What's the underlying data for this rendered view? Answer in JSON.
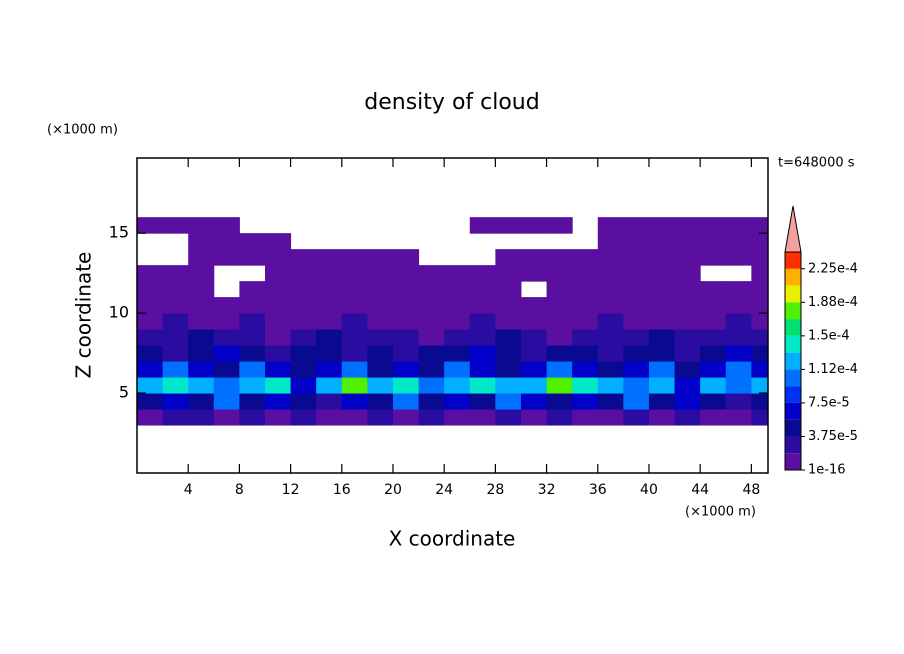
{
  "chart_data": {
    "type": "contour",
    "title": "density of cloud",
    "x_label": "X coordinate",
    "y_label": "Z coordinate",
    "x_unit": "(×1000 m)",
    "y_unit": "(×1000 m)",
    "time_label": "t=648000 s",
    "xlim": [
      0,
      49.3
    ],
    "ylim": [
      0,
      19.7
    ],
    "xticks": [
      4,
      8,
      12,
      16,
      20,
      24,
      28,
      32,
      36,
      40,
      44,
      48
    ],
    "yticks": [
      5,
      10,
      15
    ],
    "x": [
      1,
      3,
      5,
      7,
      9,
      11,
      13,
      15,
      17,
      19,
      21,
      23,
      25,
      27,
      29,
      31,
      33,
      35,
      37,
      39,
      41,
      43,
      45,
      47,
      49
    ],
    "y": [
      3.5,
      4.5,
      5.5,
      6.5,
      7.5,
      8.5,
      9.5,
      10.5,
      11.5,
      12.5,
      13.5,
      14.5,
      15.5,
      16.5
    ],
    "z": [
      [
        1e-06,
        2.5e-05,
        2.5e-05,
        1e-06,
        2.5e-05,
        1e-06,
        2.5e-05,
        1e-06,
        1e-06,
        2.5e-05,
        1e-06,
        2.5e-05,
        1e-06,
        1e-06,
        2.5e-05,
        1e-06,
        2.5e-05,
        1e-06,
        1e-06,
        2.5e-05,
        1e-06,
        2.5e-05,
        1e-06,
        1e-06,
        2.5e-05
      ],
      [
        4.5e-05,
        6.5e-05,
        4.5e-05,
        0.0001,
        4.5e-05,
        6.5e-05,
        4.5e-05,
        2.5e-05,
        6.5e-05,
        4.5e-05,
        0.0001,
        4.5e-05,
        6.5e-05,
        4.5e-05,
        0.0001,
        6.5e-05,
        4.5e-05,
        6.5e-05,
        4.5e-05,
        0.0001,
        4.5e-05,
        6.5e-05,
        4.5e-05,
        2.5e-05,
        4.5e-05
      ],
      [
        0.00012,
        0.00014,
        0.00012,
        0.0001,
        0.00012,
        0.00014,
        6.5e-05,
        0.00012,
        0.00017,
        0.00012,
        0.00014,
        0.0001,
        0.00012,
        0.00014,
        0.00012,
        0.00012,
        0.00017,
        0.00014,
        0.00012,
        0.0001,
        0.00012,
        6.5e-05,
        0.00012,
        0.0001,
        0.00012
      ],
      [
        6.5e-05,
        0.0001,
        6.5e-05,
        4.5e-05,
        0.0001,
        6.5e-05,
        4.5e-05,
        6.5e-05,
        0.0001,
        4.5e-05,
        6.5e-05,
        4.5e-05,
        0.0001,
        6.5e-05,
        4.5e-05,
        6.5e-05,
        0.0001,
        6.5e-05,
        4.5e-05,
        6.5e-05,
        0.0001,
        4.5e-05,
        6.5e-05,
        0.0001,
        6.5e-05
      ],
      [
        4.5e-05,
        2.5e-05,
        4.5e-05,
        6.5e-05,
        4.5e-05,
        2.5e-05,
        4.5e-05,
        4.5e-05,
        2.5e-05,
        4.5e-05,
        2.5e-05,
        4.5e-05,
        4.5e-05,
        6.5e-05,
        4.5e-05,
        2.5e-05,
        4.5e-05,
        4.5e-05,
        2.5e-05,
        4.5e-05,
        4.5e-05,
        2.5e-05,
        4.5e-05,
        6.5e-05,
        4.5e-05
      ],
      [
        2.5e-05,
        2.5e-05,
        4.5e-05,
        2.5e-05,
        2.5e-05,
        1e-06,
        2.5e-05,
        4.5e-05,
        2.5e-05,
        2.5e-05,
        2.5e-05,
        1e-06,
        2.5e-05,
        2.5e-05,
        4.5e-05,
        2.5e-05,
        1e-06,
        2.5e-05,
        2.5e-05,
        2.5e-05,
        4.5e-05,
        2.5e-05,
        2.5e-05,
        2.5e-05,
        2.5e-05
      ],
      [
        1e-06,
        2.5e-05,
        1e-06,
        1e-06,
        2.5e-05,
        1e-06,
        1e-06,
        1e-06,
        2.5e-05,
        1e-06,
        1e-06,
        1e-06,
        1e-06,
        2.5e-05,
        1e-06,
        1e-06,
        1e-06,
        1e-06,
        2.5e-05,
        1e-06,
        1e-06,
        1e-06,
        1e-06,
        2.5e-05,
        1e-06
      ],
      [
        1e-06,
        1e-06,
        1e-06,
        1e-06,
        1e-06,
        1e-06,
        1e-06,
        1e-06,
        1e-06,
        1e-06,
        1e-06,
        1e-06,
        1e-06,
        1e-06,
        1e-06,
        1e-06,
        1e-06,
        1e-06,
        1e-06,
        1e-06,
        1e-06,
        1e-06,
        1e-06,
        1e-06,
        1e-06
      ],
      [
        1e-06,
        1e-06,
        1e-06,
        null,
        1e-06,
        1e-06,
        1e-06,
        1e-06,
        1e-06,
        1e-06,
        1e-06,
        1e-06,
        1e-06,
        1e-06,
        1e-06,
        null,
        1e-06,
        1e-06,
        1e-06,
        1e-06,
        1e-06,
        1e-06,
        1e-06,
        1e-06,
        1e-06
      ],
      [
        1e-06,
        1e-06,
        1e-06,
        null,
        null,
        1e-06,
        1e-06,
        1e-06,
        1e-06,
        1e-06,
        1e-06,
        1e-06,
        1e-06,
        1e-06,
        1e-06,
        1e-06,
        1e-06,
        1e-06,
        1e-06,
        1e-06,
        1e-06,
        1e-06,
        null,
        null,
        1e-06
      ],
      [
        null,
        null,
        1e-06,
        1e-06,
        1e-06,
        1e-06,
        1e-06,
        1e-06,
        1e-06,
        1e-06,
        1e-06,
        null,
        null,
        null,
        1e-06,
        1e-06,
        1e-06,
        1e-06,
        1e-06,
        1e-06,
        1e-06,
        1e-06,
        1e-06,
        1e-06,
        1e-06
      ],
      [
        null,
        null,
        1e-06,
        1e-06,
        1e-06,
        1e-06,
        null,
        null,
        null,
        null,
        null,
        null,
        null,
        null,
        null,
        null,
        null,
        null,
        1e-06,
        1e-06,
        1e-06,
        1e-06,
        1e-06,
        1e-06,
        1e-06
      ],
      [
        1e-06,
        1e-06,
        1e-06,
        1e-06,
        null,
        null,
        null,
        null,
        null,
        null,
        null,
        null,
        null,
        1e-06,
        1e-06,
        1e-06,
        1e-06,
        null,
        1e-06,
        1e-06,
        1e-06,
        1e-06,
        1e-06,
        1e-06,
        1e-06
      ],
      [
        null,
        null,
        null,
        null,
        null,
        null,
        null,
        null,
        null,
        null,
        null,
        null,
        null,
        null,
        null,
        null,
        null,
        null,
        null,
        null,
        null,
        null,
        null,
        null,
        null
      ]
    ],
    "levels": [
      1e-16,
      1.875e-05,
      3.75e-05,
      5.625e-05,
      7.5e-05,
      9.375e-05,
      0.0001125,
      0.00013125,
      0.00015,
      0.00016875,
      0.0001875,
      0.00020625,
      0.000225,
      0.00024375
    ],
    "colors": [
      "#5a0fa0",
      "#2a0ca0",
      "#0a0a90",
      "#0000c8",
      "#0030f0",
      "#0070ff",
      "#00b0ff",
      "#00e8c8",
      "#00e070",
      "#50f000",
      "#e8f000",
      "#ffb000",
      "#ff3000"
    ],
    "extend_color": "#f4a0a0",
    "colorbar_ticks": [
      {
        "value": 1e-16,
        "label": "1e-16"
      },
      {
        "value": 3.75e-05,
        "label": "3.75e-5"
      },
      {
        "value": 7.5e-05,
        "label": "7.5e-5"
      },
      {
        "value": 0.0001125,
        "label": "1.12e-4"
      },
      {
        "value": 0.00015,
        "label": "1.5e-4"
      },
      {
        "value": 0.0001875,
        "label": "1.88e-4"
      },
      {
        "value": 0.000225,
        "label": "2.25e-4"
      }
    ]
  }
}
